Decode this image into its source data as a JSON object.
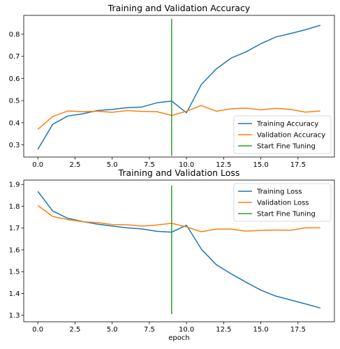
{
  "chart_data": [
    {
      "type": "line",
      "title": "Training and Validation Accuracy",
      "xlabel": "",
      "ylabel": "",
      "xlim": [
        -0.95,
        19.95
      ],
      "ylim": [
        0.245,
        0.885
      ],
      "xticks": [
        0.0,
        2.5,
        5.0,
        7.5,
        10.0,
        12.5,
        15.0,
        17.5
      ],
      "xtick_labels": [
        "0.0",
        "2.5",
        "5.0",
        "7.5",
        "10.0",
        "12.5",
        "15.0",
        "17.5"
      ],
      "yticks": [
        0.3,
        0.4,
        0.5,
        0.6,
        0.7,
        0.8
      ],
      "ytick_labels": [
        "0.3",
        "0.4",
        "0.5",
        "0.6",
        "0.7",
        "0.8"
      ],
      "grid": false,
      "legend_position": "lower-right",
      "x": [
        0,
        1,
        2,
        3,
        4,
        5,
        6,
        7,
        8,
        9,
        10,
        11,
        12,
        13,
        14,
        15,
        16,
        17,
        18,
        19
      ],
      "series": [
        {
          "name": "Training Accuracy",
          "color": "#1f77b4",
          "values": [
            0.28,
            0.393,
            0.43,
            0.44,
            0.455,
            0.46,
            0.468,
            0.471,
            0.49,
            0.498,
            0.445,
            0.573,
            0.643,
            0.692,
            0.72,
            0.757,
            0.787,
            0.803,
            0.82,
            0.84
          ]
        },
        {
          "name": "Validation Accuracy",
          "color": "#ff7f0e",
          "values": [
            0.37,
            0.428,
            0.453,
            0.45,
            0.452,
            0.447,
            0.455,
            0.451,
            0.45,
            0.433,
            0.452,
            0.478,
            0.452,
            0.463,
            0.466,
            0.458,
            0.465,
            0.46,
            0.448,
            0.453
          ]
        }
      ],
      "vline": {
        "name": "Start Fine Tuning",
        "color": "#2ca02c",
        "x": 9,
        "y": [
          0.25,
          0.87
        ]
      }
    },
    {
      "type": "line",
      "title": "Training and Validation Loss",
      "xlabel": "epoch",
      "ylabel": "",
      "xlim": [
        -0.95,
        19.95
      ],
      "ylim": [
        1.27,
        1.92
      ],
      "xticks": [
        0.0,
        2.5,
        5.0,
        7.5,
        10.0,
        12.5,
        15.0,
        17.5
      ],
      "xtick_labels": [
        "0.0",
        "2.5",
        "5.0",
        "7.5",
        "10.0",
        "12.5",
        "15.0",
        "17.5"
      ],
      "yticks": [
        1.3,
        1.4,
        1.5,
        1.6,
        1.7,
        1.8,
        1.9
      ],
      "ytick_labels": [
        "1.3",
        "1.4",
        "1.5",
        "1.6",
        "1.7",
        "1.8",
        "1.9"
      ],
      "grid": false,
      "legend_position": "upper-right",
      "x": [
        0,
        1,
        2,
        3,
        4,
        5,
        6,
        7,
        8,
        9,
        10,
        11,
        12,
        13,
        14,
        15,
        16,
        17,
        18,
        19
      ],
      "series": [
        {
          "name": "Training Loss",
          "color": "#1f77b4",
          "values": [
            1.868,
            1.778,
            1.745,
            1.73,
            1.718,
            1.709,
            1.701,
            1.696,
            1.685,
            1.681,
            1.713,
            1.603,
            1.532,
            1.49,
            1.452,
            1.415,
            1.388,
            1.37,
            1.352,
            1.333
          ]
        },
        {
          "name": "Validation Loss",
          "color": "#ff7f0e",
          "values": [
            1.803,
            1.753,
            1.739,
            1.729,
            1.725,
            1.716,
            1.715,
            1.709,
            1.714,
            1.722,
            1.705,
            1.683,
            1.695,
            1.695,
            1.686,
            1.689,
            1.691,
            1.69,
            1.701,
            1.701
          ]
        }
      ],
      "vline": {
        "name": "Start Fine Tuning",
        "color": "#2ca02c",
        "x": 9,
        "y": [
          1.305,
          1.895
        ]
      }
    }
  ]
}
